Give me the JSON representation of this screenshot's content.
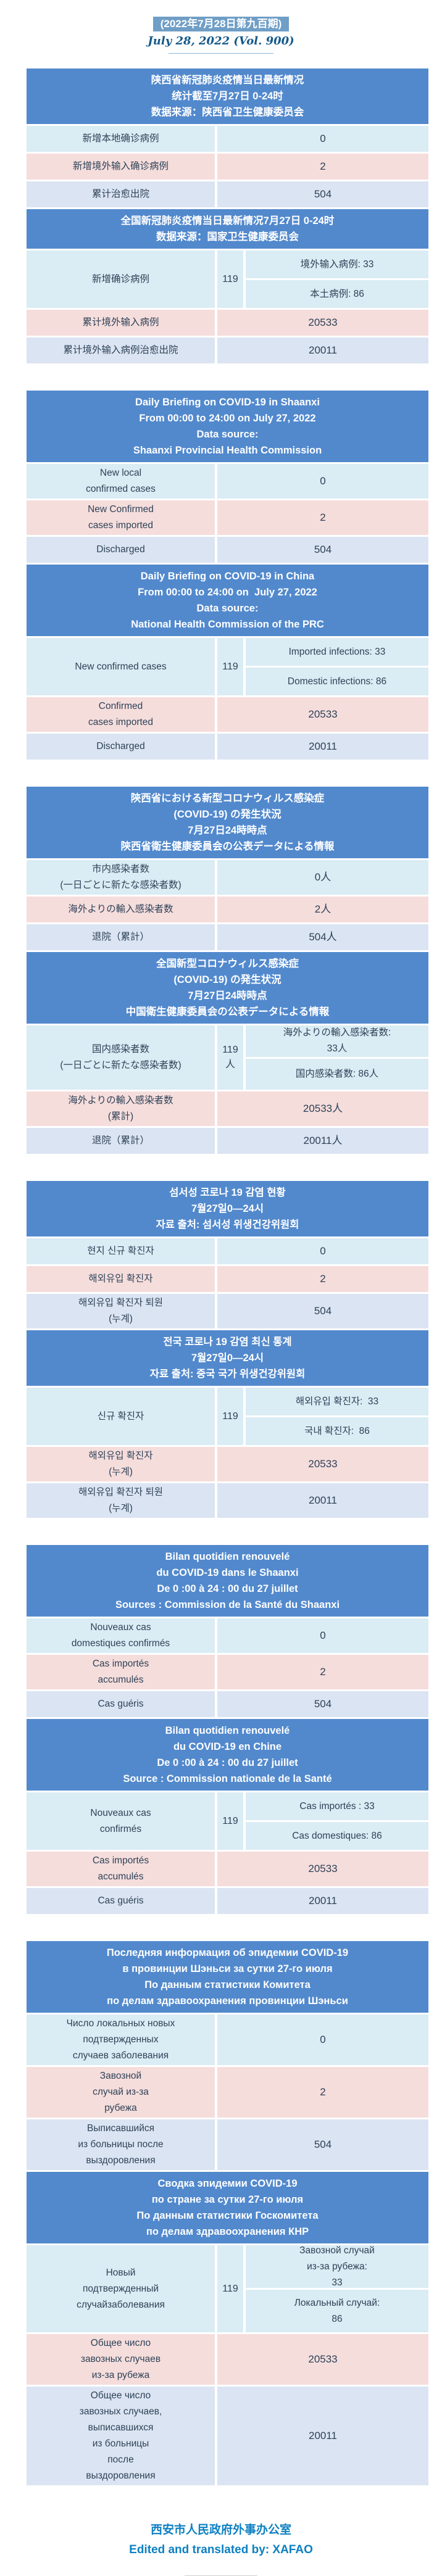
{
  "page": {
    "issue_title_zh": "(2022年7月28日第九百期)",
    "issue_title_en": "July 28, 2022 (Vol. 900)",
    "footer_zh": "西安市人民政府外事办公室",
    "footer_en": "Edited and translated by: XAFAO"
  },
  "colors": {
    "header_blue": "#5289cd",
    "row_cyan": "#daecf4",
    "row_pink": "#f5dddc",
    "row_periwinkle": "#dbe4f2",
    "title_bg": "#6f9ec6",
    "accent_blue": "#0d80c2",
    "cell_text": "#2e4257"
  },
  "sections": [
    {
      "id": "chinese",
      "tables": [
        {
          "header_lines": [
            "陕西省新冠肺炎疫情当日最新情况",
            "统计截至7月27日 0-24时",
            "数据来源：陕西省卫生健康委员会"
          ],
          "rows": [
            {
              "style": "cyan",
              "label_lines": [
                "新增本地确诊病例"
              ],
              "value": "0"
            },
            {
              "style": "pink",
              "label_lines": [
                "新增境外输入确诊病例"
              ],
              "value": "2"
            },
            {
              "style": "peri",
              "label_lines": [
                "累计治愈出院"
              ],
              "value": "504"
            }
          ]
        },
        {
          "header_lines": [
            "全国新冠肺炎疫情当日最新情况7月27日 0-24时",
            "数据来源：国家卫生健康委员会"
          ],
          "rows": [
            {
              "style": "cyan",
              "label_lines": [
                "新增确诊病例"
              ],
              "value": "119",
              "split": {
                "top_lines": [
                  "境外输入病例: 33"
                ],
                "bottom_lines": [
                  "本土病例: 86"
                ]
              }
            },
            {
              "style": "pink",
              "label_lines": [
                "累计境外输入病例"
              ],
              "value": "20533"
            },
            {
              "style": "peri",
              "label_lines": [
                "累计境外输入病例治愈出院"
              ],
              "value": "20011"
            }
          ]
        }
      ]
    },
    {
      "id": "english",
      "tables": [
        {
          "header_lines": [
            "Daily Briefing on COVID-19 in Shaanxi",
            "From 00:00 to 24:00 on July 27, 2022",
            "Data source:",
            "Shaanxi Provincial Health Commission"
          ],
          "rows": [
            {
              "style": "cyan",
              "label_lines": [
                "New local",
                "confirmed cases"
              ],
              "value": "0"
            },
            {
              "style": "pink",
              "label_lines": [
                "New Confirmed",
                "cases imported"
              ],
              "value": "2"
            },
            {
              "style": "peri",
              "label_lines": [
                "Discharged"
              ],
              "value": "504"
            }
          ]
        },
        {
          "header_lines": [
            "Daily Briefing on COVID-19 in China",
            "From 00:00 to 24:00 on  July 27, 2022",
            "Data source:",
            "National Health Commission of the PRC"
          ],
          "rows": [
            {
              "style": "cyan",
              "label_lines": [
                "New confirmed cases"
              ],
              "value": "119",
              "split": {
                "top_lines": [
                  "Imported infections: 33"
                ],
                "bottom_lines": [
                  "Domestic infections: 86"
                ]
              }
            },
            {
              "style": "pink",
              "label_lines": [
                "Confirmed",
                "cases imported"
              ],
              "value": "20533"
            },
            {
              "style": "peri",
              "label_lines": [
                "Discharged"
              ],
              "value": "20011"
            }
          ]
        }
      ]
    },
    {
      "id": "japanese",
      "tables": [
        {
          "header_lines": [
            "陝西省における新型コロナウィルス感染症",
            "(COVID-19) の発生状況",
            "7月27日24時時点",
            "陝西省衛生健康委員会の公表データによる情報"
          ],
          "rows": [
            {
              "style": "cyan",
              "label_lines": [
                "市内感染者数",
                "(一日ごとに新たな感染者数)"
              ],
              "value": "0人"
            },
            {
              "style": "pink",
              "label_lines": [
                "海外よりの輸入感染者数"
              ],
              "value": "2人"
            },
            {
              "style": "peri",
              "label_lines": [
                "退院（累計）"
              ],
              "value": "504人"
            }
          ]
        },
        {
          "header_lines": [
            "全国新型コロナウィルス感染症",
            "(COVID-19) の発生状況",
            "7月27日24時時点",
            "中国衛生健康委員会の公表データによる情報"
          ],
          "rows": [
            {
              "style": "cyan",
              "label_lines": [
                "国内感染者数",
                "(一日ごとに新たな感染者数)"
              ],
              "value": "119人",
              "split": {
                "top_lines": [
                  "海外よりの輸入感染者数:",
                  "33人"
                ],
                "bottom_lines": [
                  "国内感染者数: 86人"
                ]
              }
            },
            {
              "style": "pink",
              "label_lines": [
                "海外よりの輸入感染者数",
                "(累計)"
              ],
              "value": "20533人"
            },
            {
              "style": "peri",
              "label_lines": [
                "退院（累計）"
              ],
              "value": "20011人"
            }
          ]
        }
      ]
    },
    {
      "id": "korean",
      "tables": [
        {
          "header_lines": [
            "섬서성 코로나 19 감염 현황",
            "7월27일0—24시",
            "자료 출처: 섬서성 위생건강위원회"
          ],
          "rows": [
            {
              "style": "cyan",
              "label_lines": [
                "현지 신규 확진자"
              ],
              "value": "0"
            },
            {
              "style": "pink",
              "label_lines": [
                "해외유입 확진자"
              ],
              "value": "2"
            },
            {
              "style": "peri",
              "label_lines": [
                "해외유입 확진자 퇴원",
                "(누계)"
              ],
              "value": "504"
            }
          ]
        },
        {
          "header_lines": [
            "전국 코로나 19 감염 최신 통계",
            "7월27일0—24시",
            "자료 출처: 중국 국가 위생건강위원회"
          ],
          "rows": [
            {
              "style": "cyan",
              "label_lines": [
                "신규 확진자"
              ],
              "value": "119",
              "split": {
                "top_lines": [
                  "해외유입 확진자:  33"
                ],
                "bottom_lines": [
                  "국내 확진자:  86"
                ]
              }
            },
            {
              "style": "pink",
              "label_lines": [
                "해외유입 확진자",
                "(누계)"
              ],
              "value": "20533"
            },
            {
              "style": "peri",
              "label_lines": [
                "해외유입 확진자 퇴원",
                "(누계)"
              ],
              "value": "20011"
            }
          ]
        }
      ]
    },
    {
      "id": "french",
      "tables": [
        {
          "header_lines": [
            "Bilan quotidien renouvelé",
            "du COVID-19 dans le Shaanxi",
            "De 0 :00 à 24 : 00 du 27 juillet",
            "Sources : Commission de la Santé du Shaanxi"
          ],
          "rows": [
            {
              "style": "cyan",
              "label_lines": [
                "Nouveaux cas",
                "domestiques confirmés"
              ],
              "value": "0"
            },
            {
              "style": "pink",
              "label_lines": [
                "Cas importés",
                "accumulés"
              ],
              "value": "2"
            },
            {
              "style": "peri",
              "label_lines": [
                "Cas guéris"
              ],
              "value": "504"
            }
          ]
        },
        {
          "header_lines": [
            "Bilan quotidien renouvelé",
            "du COVID-19 en Chine",
            "De 0 :00 à 24 : 00 du 27 juillet",
            "Source : Commission nationale de la Santé"
          ],
          "rows": [
            {
              "style": "cyan",
              "label_lines": [
                "Nouveaux cas",
                "confirmés"
              ],
              "value": "119",
              "split": {
                "top_lines": [
                  "Cas importés : 33"
                ],
                "bottom_lines": [
                  "Cas domestiques: 86"
                ]
              }
            },
            {
              "style": "pink",
              "label_lines": [
                "Cas importés",
                "accumulés"
              ],
              "value": "20533"
            },
            {
              "style": "peri",
              "label_lines": [
                "Cas guéris"
              ],
              "value": "20011"
            }
          ]
        }
      ]
    },
    {
      "id": "russian",
      "tables": [
        {
          "header_lines": [
            "Последняя информация об эпидемии COVID-19",
            "в провинции Шэньси за сутки 27-го июля",
            "По данным статистики Комитета",
            "по делам здравоохранения провинции Шэньси"
          ],
          "rows": [
            {
              "style": "cyan",
              "label_lines": [
                "Число локальных новых",
                "подтвержденных",
                "случаев заболевания"
              ],
              "value": "0"
            },
            {
              "style": "pink",
              "label_lines": [
                "Завозной",
                "случай из-за",
                "рубежа"
              ],
              "value": "2"
            },
            {
              "style": "peri",
              "label_lines": [
                "Выписавшийся",
                "из больницы после",
                "выздоровления"
              ],
              "value": "504"
            }
          ]
        },
        {
          "header_lines": [
            "Сводка эпидемии COVID-19",
            "по стране за сутки 27-го июля",
            "По данным статистики Госкомитета",
            "по делам здравоохранения КНР"
          ],
          "rows": [
            {
              "style": "cyan",
              "label_lines": [
                "Новый",
                "подтвержденный",
                "случайзаболевания"
              ],
              "value": "119",
              "split": {
                "top_lines": [
                  "Завозной случай",
                  "из-за рубежа:",
                  "33"
                ],
                "bottom_lines": [
                  "Локальный случай:",
                  "86"
                ]
              }
            },
            {
              "style": "pink",
              "label_lines": [
                "Общее число",
                "завозных случаев",
                "из-за рубежа"
              ],
              "value": "20533"
            },
            {
              "style": "peri",
              "label_lines": [
                "Общее число",
                "завозных случаев,",
                "выписавшихся",
                "из больницы",
                "после",
                "выздоровления"
              ],
              "value": "20011"
            }
          ]
        }
      ]
    }
  ]
}
